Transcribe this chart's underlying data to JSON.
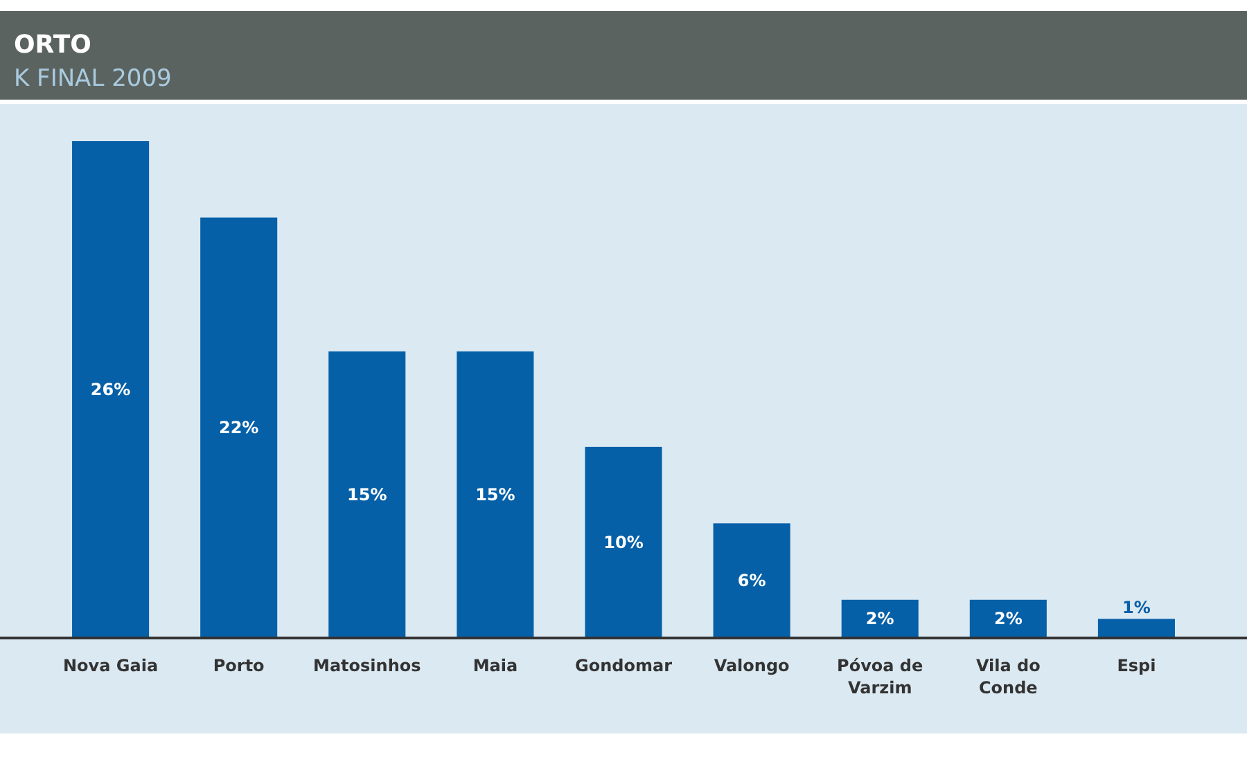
{
  "chart_data": {
    "type": "bar",
    "title": "ORTO",
    "subtitle": "K FINAL 2009",
    "categories": [
      "Nova Gaia",
      "Porto",
      "Matosinhos",
      "Maia",
      "Gondomar",
      "Valongo",
      "Póvoa de Varzim",
      "Vila do Conde",
      "Espi"
    ],
    "values": [
      26,
      22,
      15,
      15,
      10,
      6,
      2,
      2,
      1
    ],
    "value_labels": [
      "26%",
      "22%",
      "15%",
      "15%",
      "10%",
      "6%",
      "2%",
      "2%",
      "1%"
    ],
    "color": "#0560a8"
  }
}
